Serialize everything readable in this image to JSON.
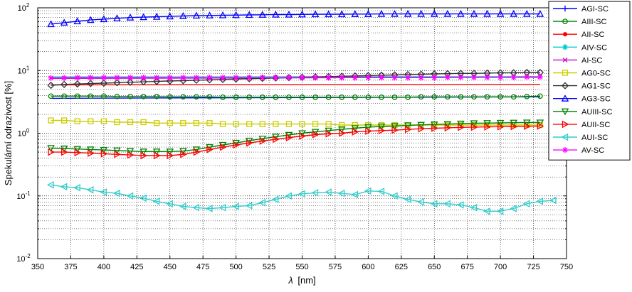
{
  "chart_data": {
    "type": "line",
    "xlabel_symbol": "λ",
    "xlabel_unit": "[nm]",
    "ylabel": "Spekulární odrazivost [%]",
    "xlim": [
      350,
      750
    ],
    "ylim": [
      0.01,
      100
    ],
    "yscale": "log",
    "grid": true,
    "legend_position": "top-right",
    "x_ticks": [
      350,
      375,
      400,
      425,
      450,
      475,
      500,
      525,
      550,
      575,
      600,
      625,
      650,
      675,
      700,
      725,
      750
    ],
    "y_tick_exponents": [
      "-2",
      "-1",
      "0",
      "1",
      "2"
    ],
    "y_tick_base": "10",
    "series": [
      {
        "name": "AGI-SC",
        "color": "#0000ff",
        "marker": "plus",
        "x": [
          360,
          730
        ],
        "y": [
          3.6,
          3.8
        ]
      },
      {
        "name": "AIII-SC",
        "color": "#008000",
        "marker": "circle",
        "x": [
          360,
          370,
          380,
          390,
          400,
          410,
          420,
          430,
          440,
          450,
          460,
          470,
          480,
          490,
          500,
          510,
          520,
          530,
          540,
          550,
          560,
          570,
          580,
          590,
          600,
          610,
          620,
          630,
          640,
          650,
          660,
          670,
          680,
          690,
          700,
          710,
          720,
          730
        ],
        "y": [
          3.9,
          3.9,
          3.9,
          3.9,
          3.9,
          3.85,
          3.85,
          3.85,
          3.85,
          3.8,
          3.8,
          3.8,
          3.8,
          3.75,
          3.75,
          3.75,
          3.75,
          3.75,
          3.75,
          3.75,
          3.75,
          3.75,
          3.75,
          3.75,
          3.75,
          3.75,
          3.75,
          3.75,
          3.8,
          3.8,
          3.8,
          3.8,
          3.8,
          3.8,
          3.8,
          3.8,
          3.85,
          3.9
        ]
      },
      {
        "name": "AII-SC",
        "color": "#ff0000",
        "marker": "dot",
        "x": [
          360,
          730
        ],
        "y": [
          5.9,
          6.0
        ]
      },
      {
        "name": "AIV-SC",
        "color": "#00cccc",
        "marker": "asterisk",
        "x": [
          360,
          730
        ],
        "y": [
          7.9,
          8.0
        ]
      },
      {
        "name": "AI-SC",
        "color": "#cc00cc",
        "marker": "cross",
        "x": [
          360,
          730
        ],
        "y": [
          7.5,
          7.8
        ]
      },
      {
        "name": "AG0-SC",
        "color": "#cccc00",
        "marker": "square",
        "x": [
          360,
          370,
          380,
          390,
          400,
          410,
          420,
          430,
          440,
          450,
          460,
          470,
          480,
          490,
          500,
          510,
          520,
          530,
          540,
          550,
          560,
          570,
          580,
          590,
          600,
          610,
          620,
          630,
          640,
          650,
          660,
          670,
          680,
          690,
          700,
          710,
          720,
          730
        ],
        "y": [
          1.6,
          1.6,
          1.55,
          1.55,
          1.55,
          1.5,
          1.5,
          1.5,
          1.45,
          1.45,
          1.45,
          1.45,
          1.45,
          1.4,
          1.4,
          1.4,
          1.4,
          1.4,
          1.4,
          1.4,
          1.4,
          1.4,
          1.35,
          1.35,
          1.35,
          1.35,
          1.35,
          1.35,
          1.35,
          1.35,
          1.35,
          1.35,
          1.35,
          1.35,
          1.35,
          1.35,
          1.35,
          1.35
        ]
      },
      {
        "name": "AG1-SC",
        "color": "#333333",
        "marker": "diamond",
        "x": [
          360,
          370,
          380,
          390,
          400,
          410,
          420,
          430,
          440,
          450,
          460,
          470,
          480,
          490,
          500,
          510,
          520,
          530,
          540,
          550,
          560,
          570,
          580,
          590,
          600,
          610,
          620,
          630,
          640,
          650,
          660,
          670,
          680,
          690,
          700,
          710,
          720,
          730
        ],
        "y": [
          5.8,
          6.0,
          6.1,
          6.2,
          6.3,
          6.4,
          6.5,
          6.6,
          6.7,
          6.8,
          6.9,
          7.0,
          7.1,
          7.2,
          7.3,
          7.4,
          7.5,
          7.6,
          7.7,
          7.8,
          7.9,
          8.0,
          8.1,
          8.2,
          8.3,
          8.4,
          8.5,
          8.6,
          8.7,
          8.8,
          8.9,
          9.0,
          9.0,
          9.1,
          9.2,
          9.2,
          9.3,
          9.3
        ]
      },
      {
        "name": "AG3-SC",
        "color": "#0000ff",
        "marker": "triangle-up",
        "x": [
          360,
          370,
          380,
          390,
          400,
          410,
          420,
          430,
          440,
          450,
          460,
          470,
          480,
          490,
          500,
          510,
          520,
          530,
          540,
          550,
          560,
          570,
          580,
          590,
          600,
          610,
          620,
          630,
          640,
          650,
          660,
          670,
          680,
          690,
          700,
          710,
          720,
          730
        ],
        "y": [
          55,
          58,
          61,
          64,
          66,
          68,
          70,
          71,
          72,
          73,
          74,
          75,
          75.5,
          76,
          76.5,
          77,
          77.5,
          78,
          78,
          78.5,
          79,
          79,
          79,
          79.5,
          79.5,
          80,
          80,
          80,
          80,
          80,
          80,
          80,
          80,
          80,
          80,
          80,
          80,
          80
        ]
      },
      {
        "name": "AUIII-SC",
        "color": "#008000",
        "marker": "triangle-down",
        "x": [
          360,
          370,
          380,
          390,
          400,
          410,
          420,
          430,
          440,
          450,
          460,
          470,
          480,
          490,
          500,
          510,
          520,
          530,
          540,
          550,
          560,
          570,
          580,
          590,
          600,
          610,
          620,
          630,
          640,
          650,
          660,
          670,
          680,
          690,
          700,
          710,
          720,
          730
        ],
        "y": [
          0.58,
          0.57,
          0.56,
          0.55,
          0.54,
          0.53,
          0.52,
          0.51,
          0.51,
          0.51,
          0.52,
          0.55,
          0.6,
          0.65,
          0.7,
          0.76,
          0.82,
          0.88,
          0.94,
          1.0,
          1.05,
          1.1,
          1.15,
          1.2,
          1.25,
          1.28,
          1.3,
          1.33,
          1.36,
          1.38,
          1.4,
          1.42,
          1.44,
          1.45,
          1.46,
          1.47,
          1.48,
          1.48
        ]
      },
      {
        "name": "AUII-SC",
        "color": "#ff0000",
        "marker": "triangle-right",
        "x": [
          360,
          370,
          380,
          390,
          400,
          410,
          420,
          430,
          440,
          450,
          460,
          470,
          480,
          490,
          500,
          510,
          520,
          530,
          540,
          550,
          560,
          570,
          580,
          590,
          600,
          610,
          620,
          630,
          640,
          650,
          660,
          670,
          680,
          690,
          700,
          710,
          720,
          730
        ],
        "y": [
          0.5,
          0.5,
          0.49,
          0.48,
          0.47,
          0.46,
          0.45,
          0.44,
          0.44,
          0.44,
          0.46,
          0.5,
          0.55,
          0.6,
          0.65,
          0.7,
          0.75,
          0.8,
          0.85,
          0.9,
          0.95,
          0.98,
          1.0,
          1.05,
          1.08,
          1.1,
          1.12,
          1.15,
          1.18,
          1.2,
          1.22,
          1.24,
          1.25,
          1.26,
          1.27,
          1.28,
          1.29,
          1.3
        ]
      },
      {
        "name": "AUI-SC",
        "color": "#33cccc",
        "marker": "triangle-left",
        "x": [
          360,
          370,
          380,
          390,
          400,
          410,
          420,
          430,
          440,
          450,
          460,
          470,
          480,
          490,
          500,
          510,
          520,
          530,
          540,
          550,
          560,
          570,
          580,
          590,
          600,
          610,
          620,
          630,
          640,
          650,
          660,
          670,
          680,
          690,
          700,
          710,
          720,
          730,
          740
        ],
        "y": [
          0.15,
          0.14,
          0.135,
          0.125,
          0.115,
          0.11,
          0.1,
          0.092,
          0.082,
          0.075,
          0.068,
          0.065,
          0.063,
          0.065,
          0.068,
          0.07,
          0.078,
          0.088,
          0.1,
          0.108,
          0.112,
          0.115,
          0.11,
          0.105,
          0.12,
          0.118,
          0.1,
          0.088,
          0.08,
          0.075,
          0.075,
          0.072,
          0.065,
          0.057,
          0.057,
          0.063,
          0.075,
          0.082,
          0.085
        ]
      },
      {
        "name": "AV-SC",
        "color": "#ff00ff",
        "marker": "star",
        "x": [
          360,
          370,
          380,
          390,
          400,
          410,
          420,
          430,
          440,
          450,
          460,
          470,
          480,
          490,
          500,
          510,
          520,
          530,
          540,
          550,
          560,
          570,
          580,
          590,
          600,
          610,
          620,
          630,
          640,
          650,
          660,
          670,
          680,
          690,
          700,
          710,
          720,
          730
        ],
        "y": [
          7.6,
          7.6,
          7.7,
          7.7,
          7.7,
          7.7,
          7.7,
          7.7,
          7.7,
          7.7,
          7.7,
          7.7,
          7.7,
          7.7,
          7.7,
          7.7,
          7.7,
          7.7,
          7.7,
          7.7,
          7.7,
          7.7,
          7.7,
          7.7,
          7.7,
          7.7,
          7.7,
          7.7,
          7.7,
          7.7,
          7.8,
          7.8,
          7.8,
          7.8,
          7.8,
          7.8,
          7.9,
          7.9
        ]
      }
    ]
  }
}
